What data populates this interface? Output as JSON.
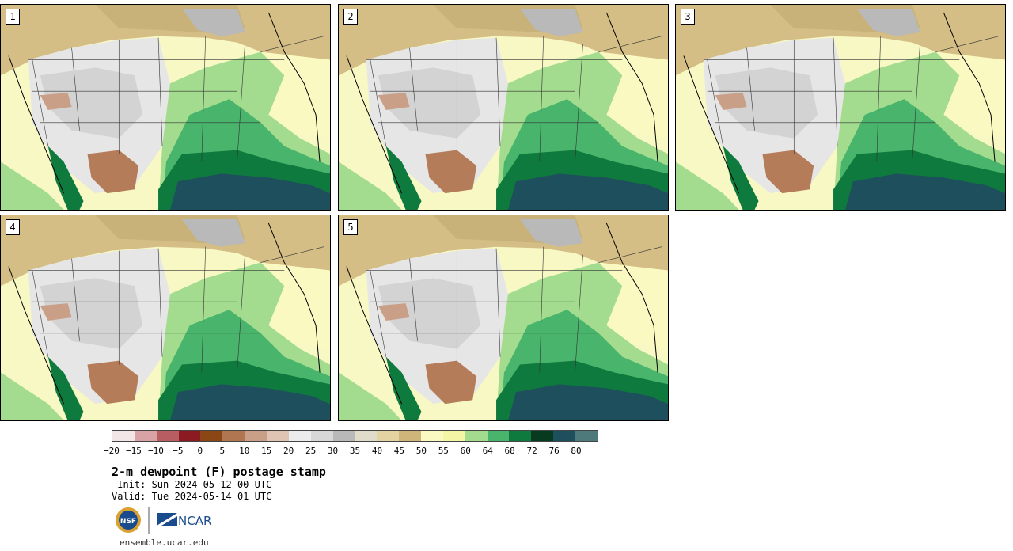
{
  "panels": [
    {
      "label": "1"
    },
    {
      "label": "2"
    },
    {
      "label": "3"
    },
    {
      "label": "4"
    },
    {
      "label": "5"
    }
  ],
  "colorbar": {
    "colors": [
      "#f3e6e6",
      "#d9a3a6",
      "#b85d62",
      "#8b1a22",
      "#8a4614",
      "#b07551",
      "#c9a087",
      "#dfc4b4",
      "#ececec",
      "#d8d8d8",
      "#b9b9b9",
      "#e1dcc9",
      "#e3d3a3",
      "#cfb579",
      "#fbf9c2",
      "#f4f6a6",
      "#a3dc8f",
      "#49b46b",
      "#0f7a3e",
      "#073a1e",
      "#1e4f5c",
      "#4e7a7c"
    ],
    "ticks": [
      "−20",
      "−15",
      "−10",
      "−5",
      "0",
      "5",
      "10",
      "15",
      "20",
      "25",
      "30",
      "35",
      "40",
      "45",
      "50",
      "55",
      "60",
      "64",
      "68",
      "72",
      "76",
      "80"
    ]
  },
  "title": "2-m dewpoint (F) postage stamp",
  "init": " Init: Sun 2024-05-12 00 UTC",
  "valid": "Valid: Tue 2024-05-14 01 UTC",
  "logos": {
    "nsf": "NSF",
    "ncar": "NCAR"
  },
  "site": "ensemble.ucar.edu"
}
